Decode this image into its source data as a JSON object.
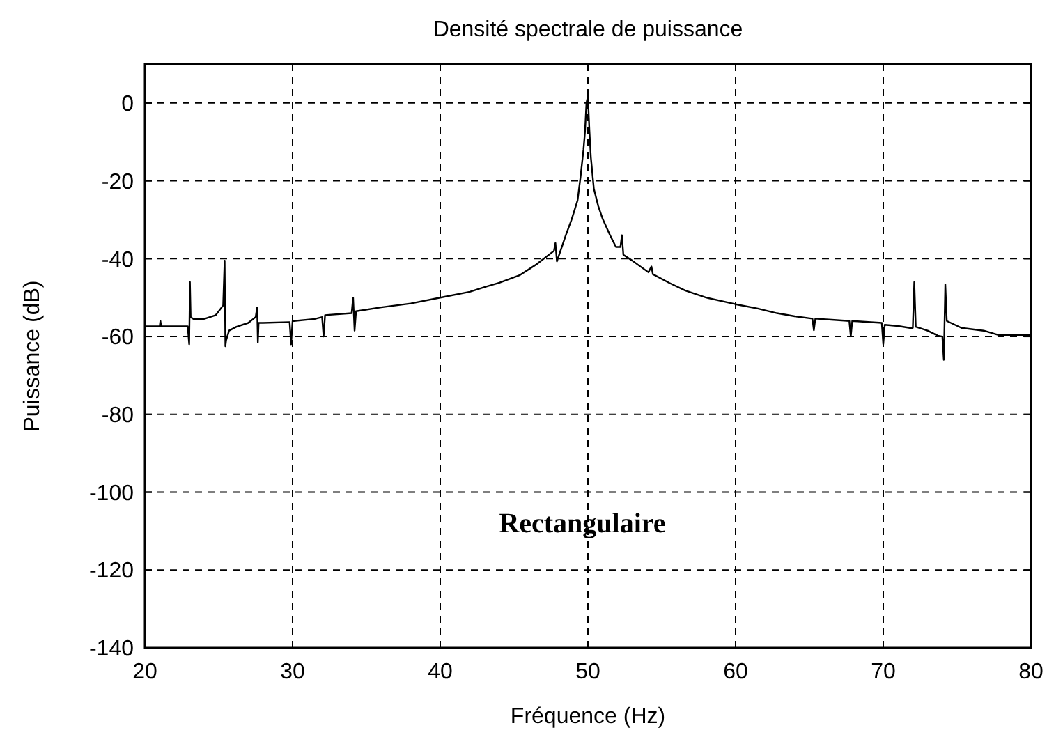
{
  "chart_data": {
    "type": "line",
    "title": "Densité spectrale de puissance",
    "xlabel": "Fréquence (Hz)",
    "ylabel": "Puissance (dB)",
    "annotations": [
      "Rectangulaire"
    ],
    "xlim": [
      20,
      80
    ],
    "ylim": [
      -140,
      10
    ],
    "xticks": [
      20,
      30,
      40,
      50,
      60,
      70,
      80
    ],
    "yticks": [
      -140,
      -120,
      -100,
      -80,
      -60,
      -40,
      -20,
      0
    ],
    "grid": true,
    "line_style": "solid",
    "marker": "none",
    "series": [
      {
        "color": "#000000",
        "x": [
          20,
          21,
          21.05,
          21.1,
          22.9,
          23,
          23.05,
          23.1,
          23.3,
          24,
          24.8,
          25.3,
          25.4,
          25.45,
          25.5,
          25.7,
          26.2,
          27,
          27.5,
          27.6,
          27.65,
          27.7,
          28,
          29.8,
          29.9,
          30,
          30.1,
          31.5,
          32,
          32.1,
          32.2,
          34,
          34.1,
          34.2,
          34.3,
          36,
          38,
          40,
          42,
          43,
          44,
          45.4,
          46.5,
          47.7,
          47.8,
          47.9,
          48.5,
          48.9,
          49.3,
          49.5,
          49.7,
          49.8,
          49.9,
          50,
          50.1,
          50.2,
          50.4,
          50.7,
          51,
          51.5,
          51.9,
          52.2,
          52.3,
          52.4,
          53,
          54.1,
          54.3,
          54.4,
          55.5,
          56.6,
          58,
          60,
          61.5,
          62.8,
          64,
          65.2,
          65.3,
          65.4,
          66.5,
          67.7,
          67.8,
          67.9,
          69.9,
          70,
          70.1,
          71,
          71.8,
          72,
          72.1,
          72.2,
          73,
          73.7,
          74,
          74.1,
          74.2,
          74.3,
          75.3,
          76.8,
          77.8,
          80
        ],
        "values": [
          -57.4,
          -57.4,
          -56,
          -57.4,
          -57.4,
          -62,
          -46,
          -55,
          -55.5,
          -55.5,
          -54.5,
          -52,
          -40.5,
          -62.5,
          -61,
          -58.5,
          -57.5,
          -56.5,
          -55,
          -52.5,
          -61.5,
          -56.5,
          -56.5,
          -56.3,
          -62,
          -56,
          -56,
          -55.5,
          -55,
          -60,
          -54.5,
          -54,
          -50,
          -58.5,
          -53.5,
          -52.5,
          -51.5,
          -50,
          -48.5,
          -47.3,
          -46.2,
          -44.2,
          -41.5,
          -38,
          -36,
          -40.7,
          -34,
          -29.9,
          -25,
          -19,
          -12,
          -7.5,
          0,
          1.7,
          -7,
          -14,
          -22,
          -26.5,
          -29.8,
          -34,
          -37,
          -37,
          -34,
          -39,
          -40.5,
          -43.5,
          -42,
          -44,
          -46.2,
          -48.2,
          -50,
          -51.7,
          -52.8,
          -54,
          -54.8,
          -55.4,
          -58.4,
          -55.4,
          -55.7,
          -56,
          -60,
          -56,
          -56.5,
          -62,
          -57,
          -57.3,
          -57.8,
          -57.8,
          -46,
          -57.5,
          -58.5,
          -59.8,
          -60,
          -66,
          -46.6,
          -56,
          -57.8,
          -58.5,
          -59.6,
          -59.6
        ]
      }
    ]
  }
}
